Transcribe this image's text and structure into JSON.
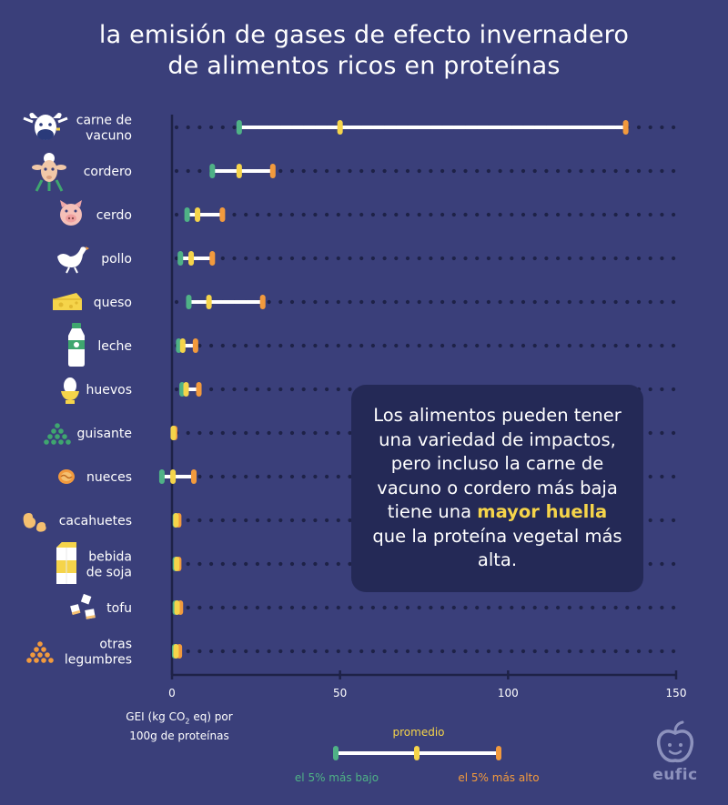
{
  "title_line1": "la emisión de gases de efecto invernadero",
  "title_line2": "de alimentos ricos en proteínas",
  "axis_caption_prefix": "GEI (kg CO",
  "axis_caption_sub": "2",
  "axis_caption_suffix": " eq) por",
  "axis_caption_line2": "100g de proteínas",
  "callout": {
    "text_before": "Los alimentos pueden tener una variedad de impactos, pero incluso la carne de vacuno o cordero más baja tiene una ",
    "highlight": "mayor huella",
    "text_after": " que la proteína vegetal más alta."
  },
  "legend": {
    "mean_label": "promedio",
    "low_label": "el 5% más bajo",
    "high_label": "el 5% más alto"
  },
  "logo_text": "eufic",
  "colors": {
    "background": "#3a3f7a",
    "low": "#4fb286",
    "mean": "#f5d44a",
    "high": "#f29a3d",
    "range_bar": "#ffffff",
    "dots": "#1e2247",
    "callout_bg": "#242956"
  },
  "chart_data": {
    "type": "range",
    "xlim": [
      0,
      150
    ],
    "xticks": [
      0,
      50,
      100,
      150
    ],
    "xlabel": "GEI (kg CO2 eq) por 100g de proteínas",
    "series_names": [
      "el 5% más bajo",
      "promedio",
      "el 5% más alto"
    ],
    "categories": [
      {
        "lines": [
          "carne de",
          "vacuno"
        ],
        "icon": "cow-icon",
        "low": 20,
        "mean": 50,
        "high": 135
      },
      {
        "lines": [
          "cordero"
        ],
        "icon": "sheep-icon",
        "low": 12,
        "mean": 20,
        "high": 30
      },
      {
        "lines": [
          "cerdo"
        ],
        "icon": "pig-icon",
        "low": 4.5,
        "mean": 7.6,
        "high": 15
      },
      {
        "lines": [
          "pollo"
        ],
        "icon": "chicken-icon",
        "low": 2.5,
        "mean": 5.7,
        "high": 12
      },
      {
        "lines": [
          "queso"
        ],
        "icon": "cheese-icon",
        "low": 5,
        "mean": 11,
        "high": 27
      },
      {
        "lines": [
          "leche"
        ],
        "icon": "milk-icon",
        "low": 2,
        "mean": 3.2,
        "high": 7
      },
      {
        "lines": [
          "huevos"
        ],
        "icon": "egg-icon",
        "low": 3,
        "mean": 4.2,
        "high": 8
      },
      {
        "lines": [
          "guisante"
        ],
        "icon": "peas-icon",
        "low": 0.4,
        "mean": 0.4,
        "high": 0.8
      },
      {
        "lines": [
          "nueces"
        ],
        "icon": "walnut-icon",
        "low": -3,
        "mean": 0.3,
        "high": 6.5
      },
      {
        "lines": [
          "cacahuetes"
        ],
        "icon": "peanut-icon",
        "low": 1,
        "mean": 1.2,
        "high": 2
      },
      {
        "lines": [
          "bebida",
          "de soja"
        ],
        "icon": "soy-drink-icon",
        "low": 1,
        "mean": 1.4,
        "high": 2
      },
      {
        "lines": [
          "tofu"
        ],
        "icon": "tofu-icon",
        "low": 1,
        "mean": 1.5,
        "high": 2.5
      },
      {
        "lines": [
          "otras",
          "legumbres"
        ],
        "icon": "legumes-icon",
        "low": 0.8,
        "mean": 1.2,
        "high": 2.2
      }
    ]
  }
}
